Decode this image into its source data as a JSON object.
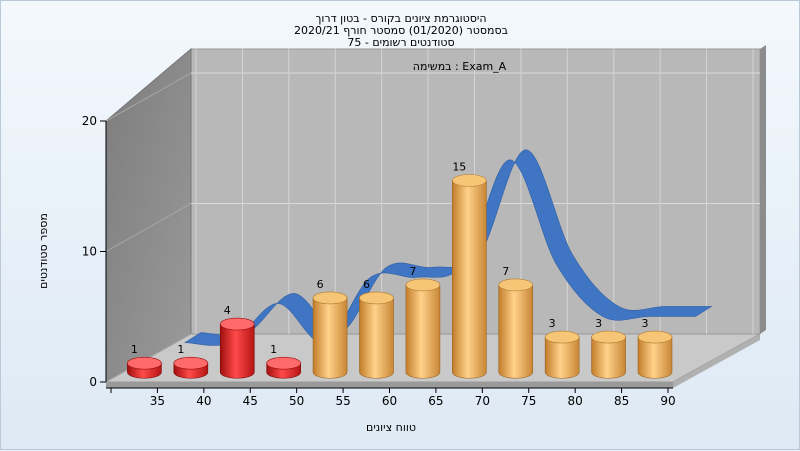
{
  "chart_data": {
    "type": "bar",
    "title": [
      "היסטוגרמת ציונים בקורס - בטון דרוך",
      "בסמסטר  (01/2020)  סמסטר חורף  2020/21",
      "סטודנטים רשומים - 75"
    ],
    "subtitle": "במשימה : Exam_A",
    "xlabel": "טווח ציונים",
    "ylabel": "מספר סטודנטים",
    "categories": [
      "35",
      "40",
      "45",
      "50",
      "55",
      "60",
      "65",
      "70",
      "75",
      "80",
      "85",
      "90"
    ],
    "values": [
      1,
      1,
      4,
      1,
      6,
      6,
      7,
      15,
      7,
      3,
      3,
      3
    ],
    "value_labels": [
      "1",
      "1",
      "4",
      "1",
      "6",
      "6",
      "7",
      "15",
      "7",
      "3",
      "3",
      "3"
    ],
    "bar_colors": [
      "#e02020",
      "#e02020",
      "#e02020",
      "#e02020",
      "#e0a24a",
      "#e0a24a",
      "#e0a24a",
      "#e0a24a",
      "#e0a24a",
      "#e0a24a",
      "#e0a24a",
      "#e0a24a"
    ],
    "curve_color": "#3a72c4",
    "ylim": [
      0,
      20
    ],
    "yticks": [
      "0",
      "10",
      "20"
    ],
    "grid": true,
    "three_d": true
  }
}
